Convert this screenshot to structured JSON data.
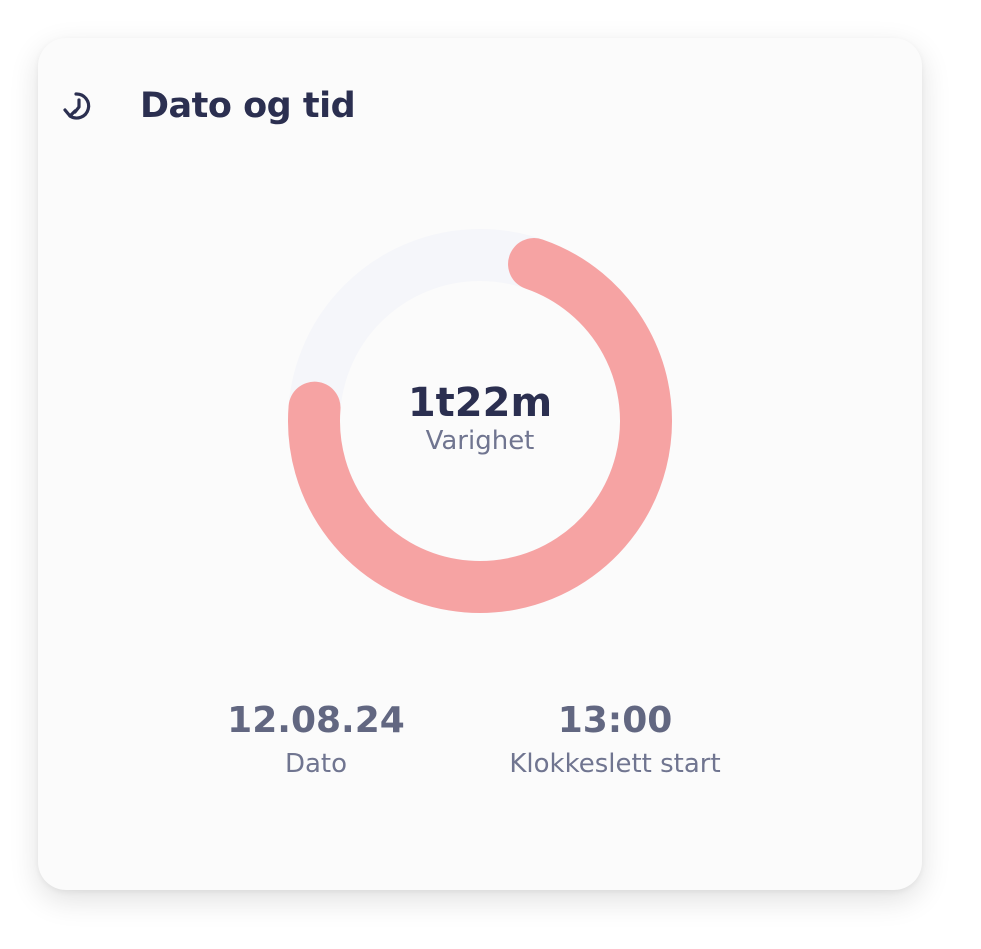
{
  "card": {
    "title": "Dato og tid",
    "icon": "clock-history-icon"
  },
  "ring": {
    "progress": 0.71,
    "value": "1t22m",
    "label": "Varighet",
    "colors": {
      "progress": "#f6a3a3",
      "track": "#f5f6fa"
    }
  },
  "stats": [
    {
      "value": "12.08.24",
      "label": "Dato"
    },
    {
      "value": "13:00",
      "label": "Klokkeslett start"
    }
  ]
}
